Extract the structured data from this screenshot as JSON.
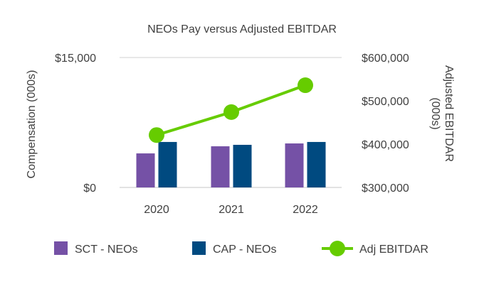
{
  "chart_data": {
    "type": "bar",
    "title": "NEOs Pay versus Adjusted EBITDAR",
    "categories": [
      "2020",
      "2021",
      "2022"
    ],
    "ylabel": "Compensation (000s)",
    "y2label_lines": [
      "Adjusted EBITDAR",
      "(000s)"
    ],
    "ylim": [
      0,
      15000
    ],
    "y2lim": [
      300000,
      600000
    ],
    "yticks": [
      {
        "v": 0,
        "label": "$0"
      },
      {
        "v": 15000,
        "label": "$15,000"
      }
    ],
    "y2ticks": [
      {
        "v": 300000,
        "label": "$300,000"
      },
      {
        "v": 400000,
        "label": "$400,000"
      },
      {
        "v": 500000,
        "label": "$500,000"
      },
      {
        "v": 600000,
        "label": "$600,000"
      }
    ],
    "series": [
      {
        "name": "SCT - NEOs",
        "type": "bar",
        "axis": "left",
        "color": "#7551A6",
        "values": [
          3930,
          4750,
          5080
        ]
      },
      {
        "name": "CAP - NEOs",
        "type": "bar",
        "axis": "left",
        "color": "#004A80",
        "values": [
          5250,
          4920,
          5250
        ]
      },
      {
        "name": "Adj EBITDAR",
        "type": "line",
        "axis": "right",
        "color": "#66CC00",
        "values": [
          421000,
          474000,
          536000
        ]
      }
    ],
    "legend": "bottom",
    "grid": true
  }
}
